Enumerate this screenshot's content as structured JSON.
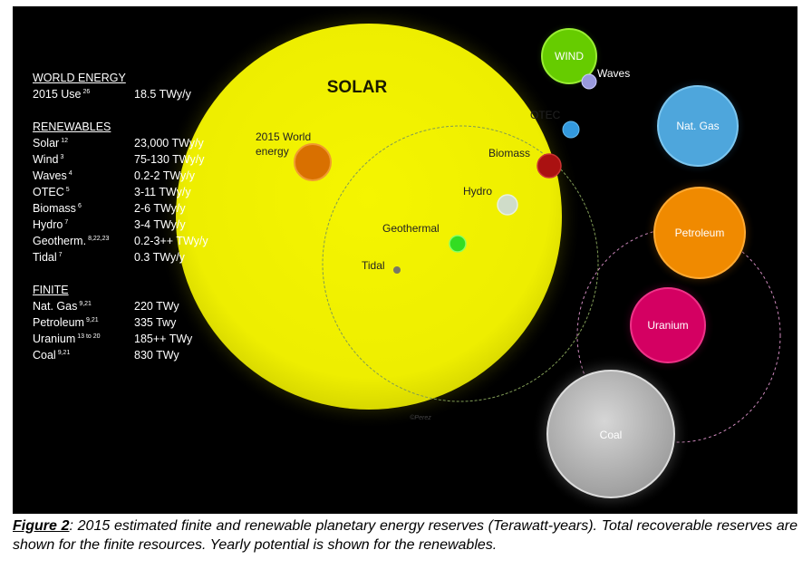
{
  "legend": {
    "world": {
      "header": "WORLD ENERGY",
      "rows": [
        {
          "label": "2015 Use",
          "ref": "26",
          "value": "18.5 TWy/y"
        }
      ]
    },
    "renewables": {
      "header": "RENEWABLES",
      "rows": [
        {
          "label": "Solar",
          "ref": "12",
          "value": "23,000 TWy/y"
        },
        {
          "label": "Wind",
          "ref": "3",
          "value": "75-130 TWy/y"
        },
        {
          "label": "Waves",
          "ref": "4",
          "value": "0.2-2 TWy/y"
        },
        {
          "label": "OTEC",
          "ref": "5",
          "value": "3-11  TWy/y"
        },
        {
          "label": "Biomass",
          "ref": "6",
          "value": "2-6 TWy/y"
        },
        {
          "label": "Hydro",
          "ref": "7",
          "value": "3-4 TWy/y"
        },
        {
          "label": "Geotherm.",
          "ref": "8,22,23",
          "value": "0.2-3++ TWy/y"
        },
        {
          "label": "Tidal",
          "ref": "7",
          "value": "0.3 TWy/y"
        }
      ]
    },
    "finite": {
      "header": "FINITE",
      "rows": [
        {
          "label": "Nat. Gas",
          "ref": "9,21",
          "value": "220 TWy"
        },
        {
          "label": "Petroleum",
          "ref": "9,21",
          "value": "335 Twy"
        },
        {
          "label": "Uranium",
          "ref": "13 to 20",
          "value": "185++ TWy"
        },
        {
          "label": "Coal",
          "ref": "9,21",
          "value": "830 TWy"
        }
      ]
    }
  },
  "diagram": {
    "solar_label": "SOLAR",
    "world_energy_label_1": "2015 World",
    "world_energy_label_2": "energy",
    "wind_label": "WIND",
    "waves_label": "Waves",
    "otec_label": "OTEC",
    "biomass_label": "Biomass",
    "hydro_label": "Hydro",
    "geothermal_label": "Geothermal",
    "tidal_label": "Tidal",
    "natgas_label": "Nat. Gas",
    "petroleum_label": "Petroleum",
    "uranium_label": "Uranium",
    "coal_label": "Coal",
    "credit": "©Perez"
  },
  "colors": {
    "solar": "#f2f200",
    "world_energy": "#e07800",
    "wind": "#66cc00",
    "waves": "#9999dd",
    "otec": "#3399dd",
    "biomass": "#aa1111",
    "hydro": "#ccddcc",
    "geothermal": "#33dd22",
    "tidal": "#777766",
    "natgas": "#4ea6dc",
    "petroleum": "#f08a00",
    "uranium": "#d40062",
    "coal": "#bfbfbf"
  },
  "caption": {
    "figure_label": "Figure 2",
    "text": ": 2015 estimated finite and renewable planetary energy reserves (Terawatt-years). Total recoverable reserves are shown for the finite resources. Yearly potential is shown for the renewables."
  }
}
